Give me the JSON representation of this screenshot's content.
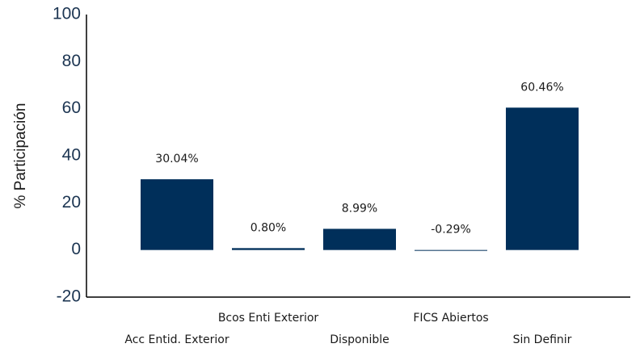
{
  "chart_data": {
    "type": "bar",
    "y_label": "% Participación",
    "categories": [
      "Acc Entid. Exterior",
      "Bcos Enti Exterior",
      "Disponible",
      "FICS Abiertos",
      "Sin Definir"
    ],
    "values": [
      30.04,
      0.8,
      8.99,
      -0.29,
      60.46
    ],
    "value_labels": [
      "30.04%",
      "0.80%",
      "8.99%",
      "-0.29%",
      "60.46%"
    ],
    "color": "#002f5a",
    "ylim": [
      -20,
      100
    ],
    "yticks": [
      -20,
      0,
      20,
      40,
      60,
      80,
      100
    ],
    "grid": false
  }
}
